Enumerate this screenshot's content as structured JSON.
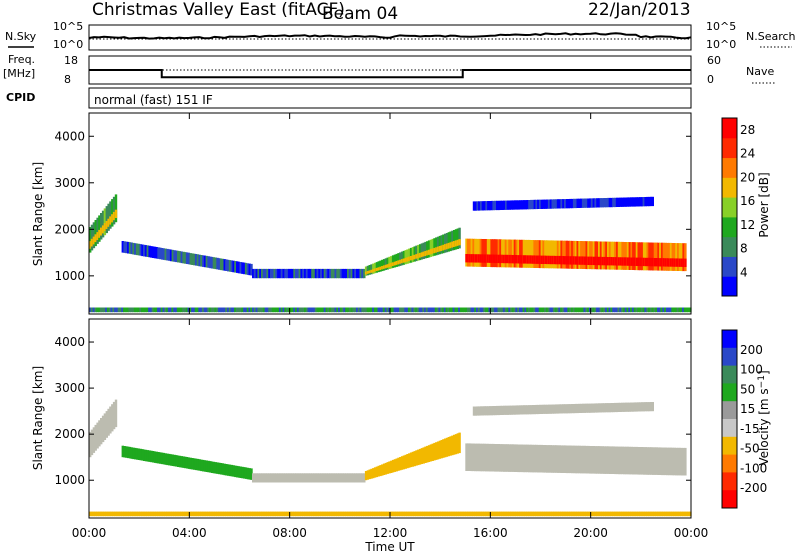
{
  "header": {
    "station": "Christmas Valley East (fitACF)",
    "beam": "Beam 04",
    "date": "22/Jan/2013"
  },
  "strips": {
    "nsky_label": "N.Sky",
    "nsearch_label": "N.Search",
    "nsky_top_tick": "10^5",
    "nsky_bottom_tick": "10^0",
    "nsearch_top_tick": "10^5",
    "nsearch_bottom_tick": "10^0",
    "freq_label_1": "Freq.",
    "freq_label_2": "[MHz]",
    "freq_top_tick": "18",
    "freq_bottom_tick": "8",
    "nave_label": "Nave",
    "nave_top_tick": "60",
    "nave_bottom_tick": "0",
    "cpid_label": "CPID",
    "cpid_value": "normal (fast) 151 IF"
  },
  "colors": {
    "power": [
      "#0000ff",
      "#2a48c8",
      "#3a8a5a",
      "#1fa81f",
      "#88d028",
      "#f2b800",
      "#ff7a00",
      "#ff2a00",
      "#ff0000"
    ],
    "velocity": [
      "#0000ff",
      "#2a48c8",
      "#3a8a5a",
      "#1fa81f",
      "#9a9a9a",
      "#c8c8c8",
      "#f2b800",
      "#ff7a00",
      "#ff2a00",
      "#ff0000"
    ],
    "ground_scatter": "#bcbcb0"
  },
  "chart_data": {
    "type": "heatmap",
    "title": "",
    "xlabel": "Time UT",
    "x_ticks": [
      "00:00",
      "04:00",
      "08:00",
      "12:00",
      "16:00",
      "20:00",
      "00:00"
    ],
    "x_range_hours": [
      0,
      24
    ],
    "frequency_mhz": [
      {
        "from_hour": 0.0,
        "to_hour": 2.9,
        "value": 13
      },
      {
        "from_hour": 2.9,
        "to_hour": 14.9,
        "value": 10.4
      },
      {
        "from_hour": 14.9,
        "to_hour": 24.0,
        "value": 13
      }
    ],
    "panels": [
      {
        "name": "power",
        "ylabel": "Slant Range [km]",
        "y_ticks": [
          1000,
          2000,
          3000,
          4000
        ],
        "ylim": [
          180,
          4500
        ],
        "colorbar_label": "Power [dB]",
        "colorbar_ticks": [
          4,
          8,
          12,
          16,
          20,
          24,
          28
        ],
        "colorbar_range": [
          0,
          30
        ],
        "scatter_bands": [
          {
            "t0": 0.0,
            "t1": 1.1,
            "r_low_0": 1500,
            "r_high_0": 2050,
            "r_low_1": 2200,
            "r_high_1": 2800,
            "level": 3
          },
          {
            "t0": 1.3,
            "t1": 6.5,
            "r_low_0": 1500,
            "r_high_0": 1750,
            "r_low_1": 1000,
            "r_high_1": 1250,
            "level": 1
          },
          {
            "t0": 6.5,
            "t1": 11.0,
            "r_low_0": 950,
            "r_high_0": 1150,
            "r_low_1": 950,
            "r_high_1": 1150,
            "level": 1
          },
          {
            "t0": 11.0,
            "t1": 14.8,
            "r_low_0": 1000,
            "r_high_0": 1200,
            "r_low_1": 1600,
            "r_high_1": 2050,
            "level": 3
          },
          {
            "t0": 15.0,
            "t1": 23.8,
            "r_low_0": 1200,
            "r_high_0": 1800,
            "r_low_1": 1100,
            "r_high_1": 1700,
            "level": 6
          },
          {
            "t0": 15.3,
            "t1": 22.5,
            "r_low_0": 2400,
            "r_high_0": 2600,
            "r_low_1": 2500,
            "r_high_1": 2700,
            "level": 0
          },
          {
            "t0": 0.0,
            "t1": 24.0,
            "r_low_0": 220,
            "r_high_0": 320,
            "r_low_1": 220,
            "r_high_1": 320,
            "level": 2
          }
        ]
      },
      {
        "name": "velocity",
        "ylabel": "Slant Range [km]",
        "y_ticks": [
          1000,
          2000,
          3000,
          4000
        ],
        "ylim": [
          180,
          4500
        ],
        "colorbar_label": "Velocity [m s^-1]",
        "colorbar_ticks": [
          200,
          100,
          50,
          15,
          -15,
          -50,
          -100,
          -200
        ],
        "scatter_bands": [
          {
            "t0": 0.0,
            "t1": 1.1,
            "r_low_0": 1500,
            "r_high_0": 2050,
            "r_low_1": 2200,
            "r_high_1": 2800,
            "class": "ground"
          },
          {
            "t0": 1.3,
            "t1": 6.5,
            "r_low_0": 1500,
            "r_high_0": 1750,
            "r_low_1": 1000,
            "r_high_1": 1250,
            "class": "green"
          },
          {
            "t0": 6.5,
            "t1": 11.0,
            "r_low_0": 950,
            "r_high_0": 1150,
            "r_low_1": 950,
            "r_high_1": 1150,
            "class": "ground"
          },
          {
            "t0": 11.0,
            "t1": 14.8,
            "r_low_0": 1000,
            "r_high_0": 1200,
            "r_low_1": 1600,
            "r_high_1": 2050,
            "class": "orange"
          },
          {
            "t0": 15.0,
            "t1": 23.8,
            "r_low_0": 1200,
            "r_high_0": 1800,
            "r_low_1": 1100,
            "r_high_1": 1700,
            "class": "ground"
          },
          {
            "t0": 15.3,
            "t1": 22.5,
            "r_low_0": 2400,
            "r_high_0": 2600,
            "r_low_1": 2500,
            "r_high_1": 2700,
            "class": "ground"
          },
          {
            "t0": 0.0,
            "t1": 24.0,
            "r_low_0": 220,
            "r_high_0": 320,
            "r_low_1": 220,
            "r_high_1": 320,
            "class": "orange"
          }
        ]
      }
    ]
  }
}
